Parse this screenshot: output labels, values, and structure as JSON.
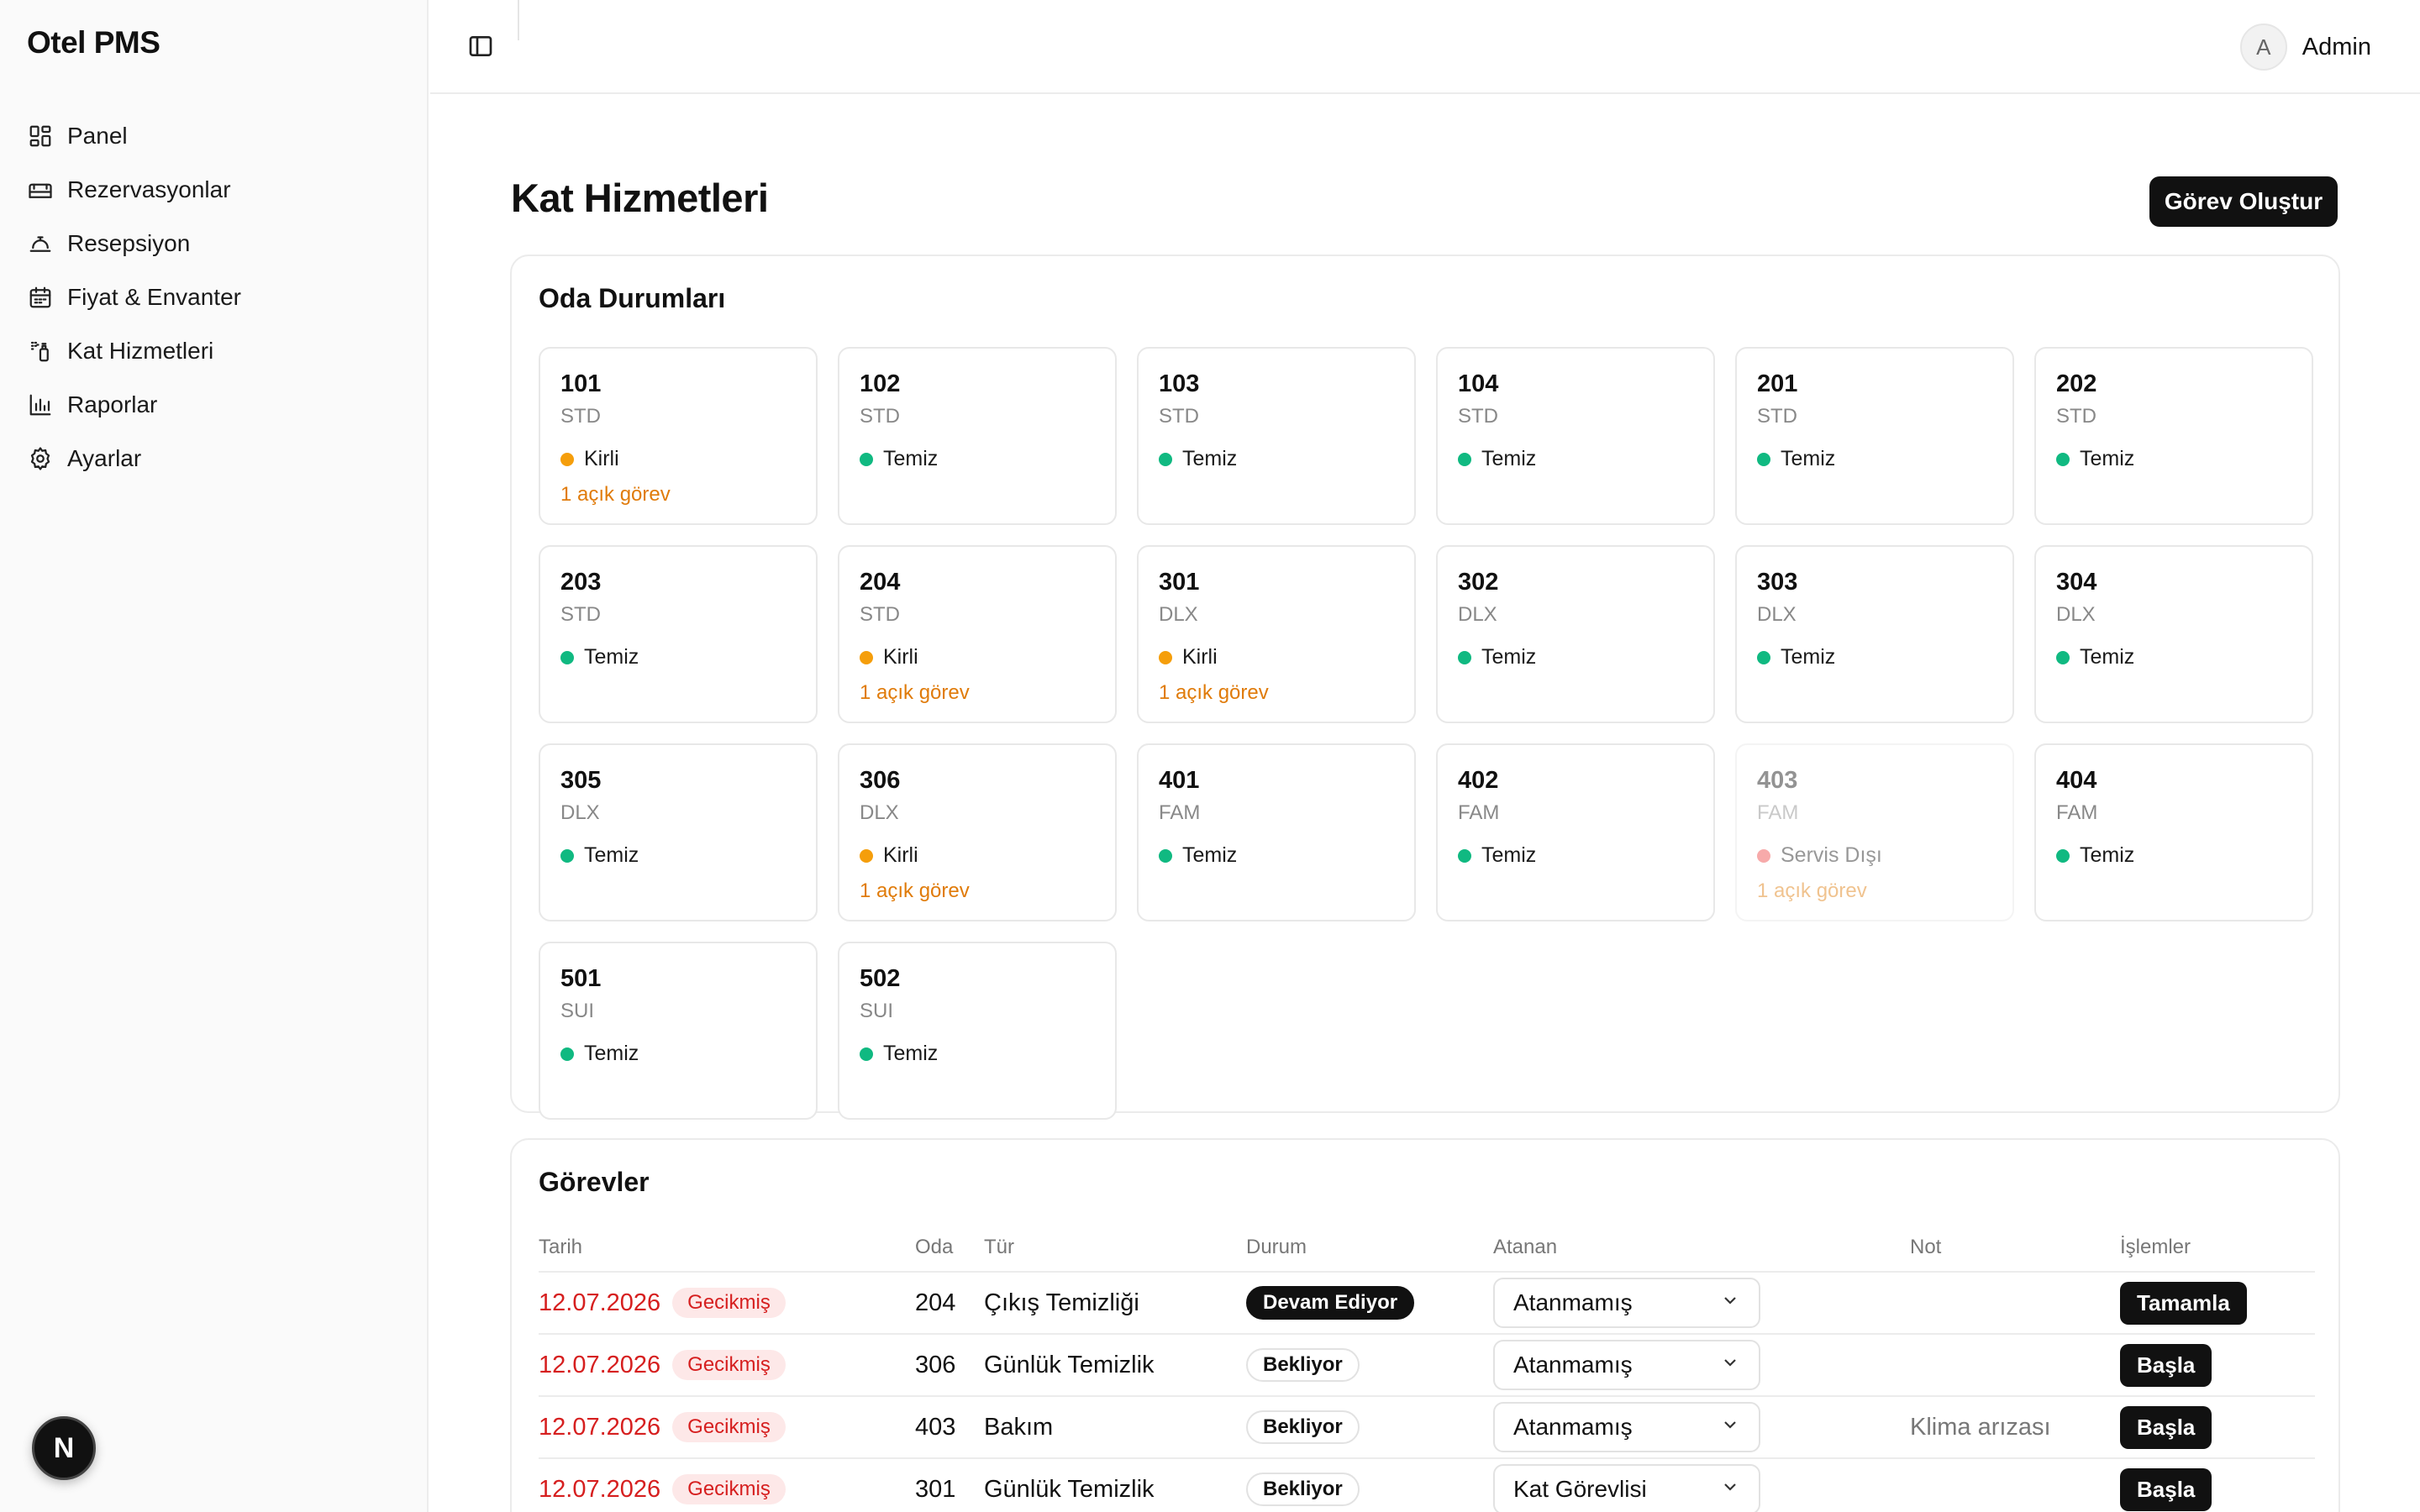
{
  "app": {
    "title": "Otel PMS"
  },
  "sidebar": {
    "items": [
      {
        "label": "Panel",
        "icon": "dashboard-icon"
      },
      {
        "label": "Rezervasyonlar",
        "icon": "bed-icon"
      },
      {
        "label": "Resepsiyon",
        "icon": "bell-icon"
      },
      {
        "label": "Fiyat & Envanter",
        "icon": "calendar-icon"
      },
      {
        "label": "Kat Hizmetleri",
        "icon": "spray-icon"
      },
      {
        "label": "Raporlar",
        "icon": "bar-chart-icon"
      },
      {
        "label": "Ayarlar",
        "icon": "gear-icon"
      }
    ]
  },
  "header": {
    "avatar_initial": "A",
    "user_name": "Admin"
  },
  "page": {
    "title": "Kat Hizmetleri",
    "create_button": "Görev Oluştur"
  },
  "rooms_card": {
    "title": "Oda Durumları",
    "rooms": [
      {
        "number": "101",
        "type": "STD",
        "status": "Kirli",
        "status_color": "#f59e0b",
        "task": "1 açık görev",
        "disabled": false
      },
      {
        "number": "102",
        "type": "STD",
        "status": "Temiz",
        "status_color": "#10b981",
        "task": "",
        "disabled": false
      },
      {
        "number": "103",
        "type": "STD",
        "status": "Temiz",
        "status_color": "#10b981",
        "task": "",
        "disabled": false
      },
      {
        "number": "104",
        "type": "STD",
        "status": "Temiz",
        "status_color": "#10b981",
        "task": "",
        "disabled": false
      },
      {
        "number": "201",
        "type": "STD",
        "status": "Temiz",
        "status_color": "#10b981",
        "task": "",
        "disabled": false
      },
      {
        "number": "202",
        "type": "STD",
        "status": "Temiz",
        "status_color": "#10b981",
        "task": "",
        "disabled": false
      },
      {
        "number": "203",
        "type": "STD",
        "status": "Temiz",
        "status_color": "#10b981",
        "task": "",
        "disabled": false
      },
      {
        "number": "204",
        "type": "STD",
        "status": "Kirli",
        "status_color": "#f59e0b",
        "task": "1 açık görev",
        "disabled": false
      },
      {
        "number": "301",
        "type": "DLX",
        "status": "Kirli",
        "status_color": "#f59e0b",
        "task": "1 açık görev",
        "disabled": false
      },
      {
        "number": "302",
        "type": "DLX",
        "status": "Temiz",
        "status_color": "#10b981",
        "task": "",
        "disabled": false
      },
      {
        "number": "303",
        "type": "DLX",
        "status": "Temiz",
        "status_color": "#10b981",
        "task": "",
        "disabled": false
      },
      {
        "number": "304",
        "type": "DLX",
        "status": "Temiz",
        "status_color": "#10b981",
        "task": "",
        "disabled": false
      },
      {
        "number": "305",
        "type": "DLX",
        "status": "Temiz",
        "status_color": "#10b981",
        "task": "",
        "disabled": false
      },
      {
        "number": "306",
        "type": "DLX",
        "status": "Kirli",
        "status_color": "#f59e0b",
        "task": "1 açık görev",
        "disabled": false
      },
      {
        "number": "401",
        "type": "FAM",
        "status": "Temiz",
        "status_color": "#10b981",
        "task": "",
        "disabled": false
      },
      {
        "number": "402",
        "type": "FAM",
        "status": "Temiz",
        "status_color": "#10b981",
        "task": "",
        "disabled": false
      },
      {
        "number": "403",
        "type": "FAM",
        "status": "Servis Dışı",
        "status_color": "#ef4444",
        "task": "1 açık görev",
        "disabled": true
      },
      {
        "number": "404",
        "type": "FAM",
        "status": "Temiz",
        "status_color": "#10b981",
        "task": "",
        "disabled": false
      },
      {
        "number": "501",
        "type": "SUI",
        "status": "Temiz",
        "status_color": "#10b981",
        "task": "",
        "disabled": false
      },
      {
        "number": "502",
        "type": "SUI",
        "status": "Temiz",
        "status_color": "#10b981",
        "task": "",
        "disabled": false
      }
    ]
  },
  "tasks_card": {
    "title": "Görevler",
    "columns": {
      "date": "Tarih",
      "room": "Oda",
      "type": "Tür",
      "status": "Durum",
      "assignee": "Atanan",
      "note": "Not",
      "actions": "İşlemler"
    },
    "rows": [
      {
        "date": "12.07.2026",
        "badge": "Gecikmiş",
        "room": "204",
        "type": "Çıkış Temizliği",
        "status": "Devam Ediyor",
        "status_dark": true,
        "assignee": "Atanmamış",
        "note": "",
        "action": "Tamamla"
      },
      {
        "date": "12.07.2026",
        "badge": "Gecikmiş",
        "room": "306",
        "type": "Günlük Temizlik",
        "status": "Bekliyor",
        "status_dark": false,
        "assignee": "Atanmamış",
        "note": "",
        "action": "Başla"
      },
      {
        "date": "12.07.2026",
        "badge": "Gecikmiş",
        "room": "403",
        "type": "Bakım",
        "status": "Bekliyor",
        "status_dark": false,
        "assignee": "Atanmamış",
        "note": "Klima arızası",
        "action": "Başla"
      },
      {
        "date": "12.07.2026",
        "badge": "Gecikmiş",
        "room": "301",
        "type": "Günlük Temizlik",
        "status": "Bekliyor",
        "status_dark": false,
        "assignee": "Kat Görevlisi",
        "note": "",
        "action": "Başla"
      }
    ]
  },
  "dev_badge": {
    "letter": "N"
  }
}
